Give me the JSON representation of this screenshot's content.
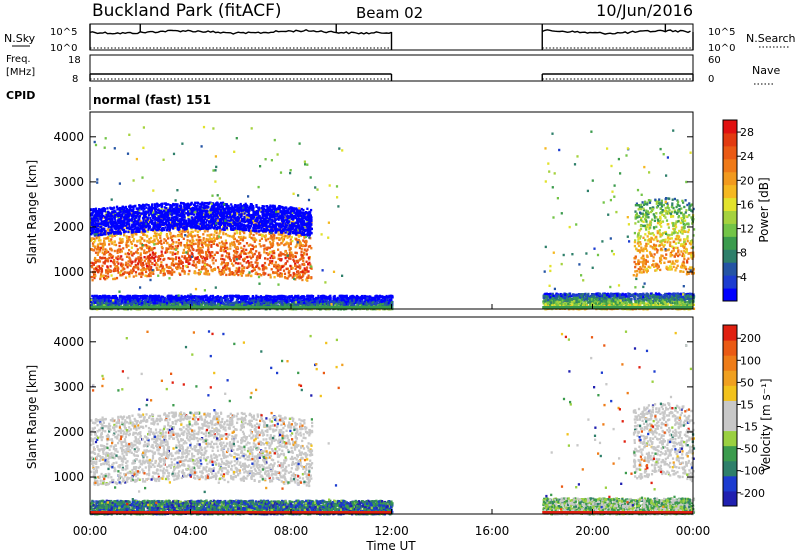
{
  "header": {
    "title": "Buckland Park (fitACF)",
    "beam": "Beam 02",
    "date": "10/Jun/2016"
  },
  "noise_panel": {
    "left_label": "N.Sky",
    "left_ticks": [
      "10^5",
      "10^0"
    ],
    "right_label": "N.Search",
    "right_ticks": [
      "10^5",
      "10^0"
    ]
  },
  "freq_panel": {
    "left_label_1": "Freq.",
    "left_label_2": "[MHz]",
    "left_ticks": [
      "18",
      "8"
    ],
    "right_label": "Nave",
    "right_ticks": [
      "60",
      "0"
    ]
  },
  "cpid": {
    "label": "CPID",
    "text": "normal (fast) 151"
  },
  "time_axis": {
    "xlabel": "Time UT",
    "ticks": [
      "00:00",
      "04:00",
      "08:00",
      "12:00",
      "16:00",
      "20:00",
      "00:00"
    ]
  },
  "chart_data": [
    {
      "type": "heatmap",
      "title": "",
      "xlabel": "Time UT",
      "ylabel": "Slant Range [km]",
      "x_ticks": [
        "00:00",
        "04:00",
        "08:00",
        "12:00",
        "16:00",
        "20:00",
        "00:00"
      ],
      "y_ticks": [
        "1000",
        "2000",
        "3000",
        "4000"
      ],
      "xlim_hours": [
        0,
        24
      ],
      "ylim_km": [
        180,
        4550
      ],
      "colorbar": {
        "label": "Power [dB]",
        "ticks": [
          "4",
          "8",
          "12",
          "16",
          "20",
          "24",
          "28"
        ],
        "range": [
          0,
          30
        ],
        "colors": [
          "#0000ff",
          "#1c3cd0",
          "#2454a4",
          "#2e7f6a",
          "#3b9b4d",
          "#73c447",
          "#a5d23e",
          "#e2e22c",
          "#f5b821",
          "#f29a1e",
          "#ef7a18",
          "#ea5a14",
          "#e23a10",
          "#e01010"
        ]
      },
      "data_gap_hours": [
        12,
        18
      ],
      "echo_regions": [
        {
          "name": "ionospheric scatter",
          "t_start": 0,
          "t_end": 8.8,
          "range_km": [
            900,
            2400
          ],
          "power_db": 26
        },
        {
          "name": "upper band",
          "t_start": 0,
          "t_end": 8.8,
          "range_km": [
            1900,
            2500
          ],
          "power_db": 14
        },
        {
          "name": "near range",
          "t_start": 0,
          "t_end": 12,
          "range_km": [
            200,
            500
          ],
          "power_db": 12
        },
        {
          "name": "evening scatter",
          "t_start": 21.6,
          "t_end": 24,
          "range_km": [
            1000,
            2600
          ],
          "power_db": 22
        },
        {
          "name": "evening near range",
          "t_start": 18,
          "t_end": 24,
          "range_km": [
            200,
            550
          ],
          "power_db": 18
        }
      ]
    },
    {
      "type": "heatmap",
      "title": "",
      "xlabel": "Time UT",
      "ylabel": "Slant Range [km]",
      "x_ticks": [
        "00:00",
        "04:00",
        "08:00",
        "12:00",
        "16:00",
        "20:00",
        "00:00"
      ],
      "y_ticks": [
        "1000",
        "2000",
        "3000",
        "4000"
      ],
      "xlim_hours": [
        0,
        24
      ],
      "ylim_km": [
        180,
        4550
      ],
      "colorbar": {
        "label": "Velocity [m s⁻¹]",
        "ticks": [
          "200",
          "100",
          "50",
          "15",
          "-15",
          "-50",
          "-100",
          "-200"
        ],
        "range": [
          -250,
          250
        ],
        "colors": [
          "#2020b0",
          "#1c3cd0",
          "#2e7f6a",
          "#3b9b4d",
          "#9ad040",
          "#c8c8c8",
          "#c8c8c8",
          "#f2c21c",
          "#f0a020",
          "#ee7c18",
          "#ea5a14",
          "#e02010"
        ]
      },
      "data_gap_hours": [
        12,
        18
      ],
      "echo_regions": [
        {
          "name": "ground scatter",
          "t_start": 0,
          "t_end": 8.8,
          "range_km": [
            900,
            2400
          ],
          "velocity": 0
        },
        {
          "name": "near range",
          "t_start": 0,
          "t_end": 12,
          "range_km": [
            200,
            500
          ],
          "velocity": -150
        },
        {
          "name": "evening ground scatter",
          "t_start": 21.6,
          "t_end": 24,
          "range_km": [
            1000,
            2600
          ],
          "velocity": 0
        },
        {
          "name": "evening near range",
          "t_start": 18,
          "t_end": 24,
          "range_km": [
            200,
            550
          ],
          "velocity": -60
        }
      ]
    }
  ]
}
